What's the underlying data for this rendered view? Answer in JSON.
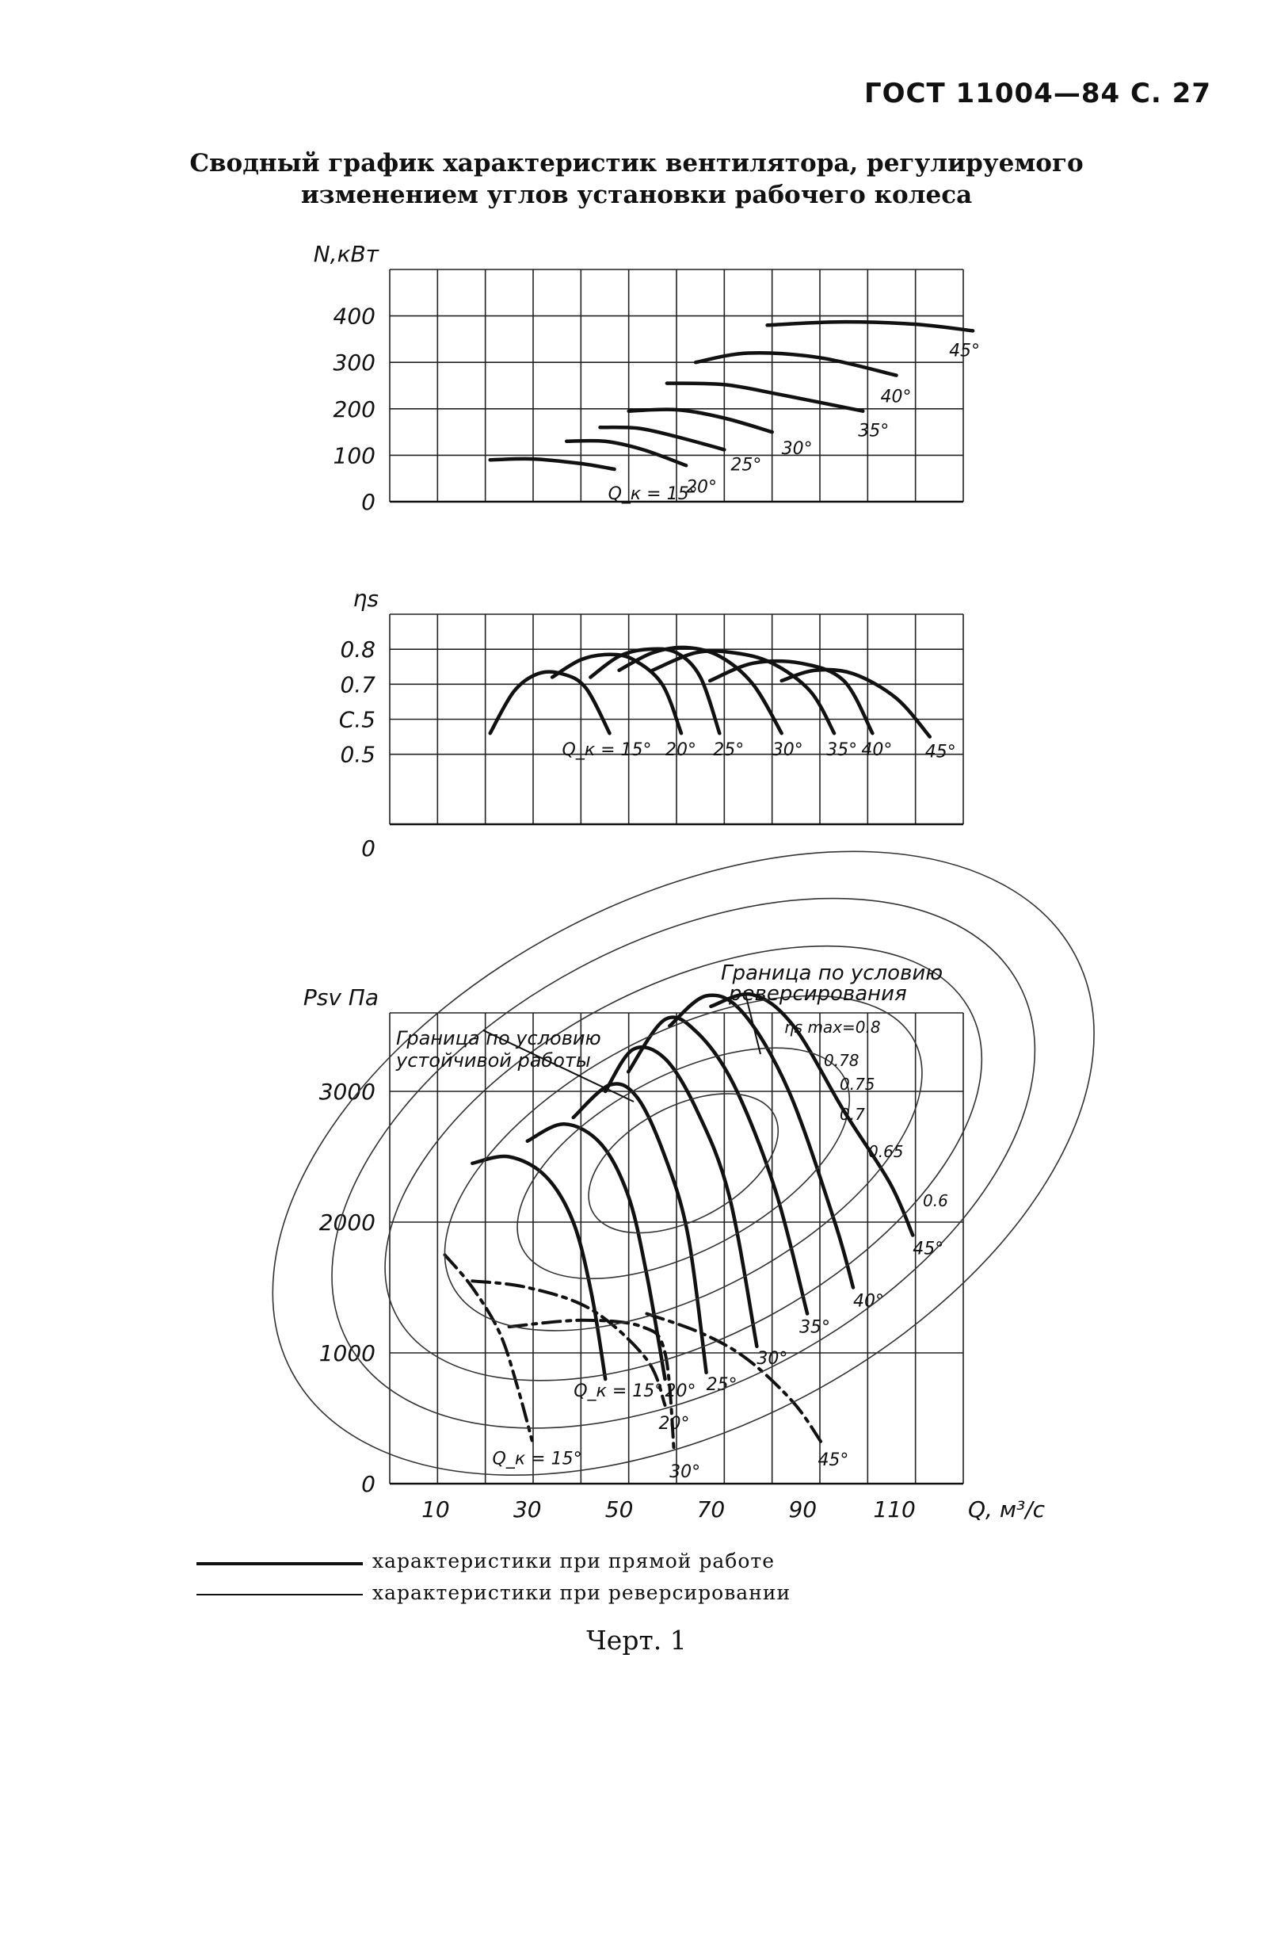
{
  "header": {
    "doc_ref": "ГОСТ 11004—84 С. 27"
  },
  "title": {
    "line1": "Сводный график характеристик вентилятора, регулируемого",
    "line2": "изменением углов установки рабочего колеса"
  },
  "chart_data": [
    {
      "type": "line",
      "id": "power",
      "ylabel": "N,кВт",
      "x_unit": "Q, м³/с",
      "xlim": [
        0,
        120
      ],
      "ylim": [
        0,
        500
      ],
      "yticks": [
        0,
        100,
        200,
        300,
        400
      ],
      "ytick_labels": [
        "0",
        "100",
        "200",
        "300",
        "400"
      ],
      "grid": true,
      "series": [
        {
          "name": "Q_к = 15°",
          "label": "Q_к = 15°",
          "points": [
            [
              21,
              90
            ],
            [
              30,
              92
            ],
            [
              40,
              82
            ],
            [
              47,
              70
            ]
          ]
        },
        {
          "name": "20°",
          "label": "20°",
          "points": [
            [
              37,
              130
            ],
            [
              45,
              130
            ],
            [
              53,
              112
            ],
            [
              62,
              78
            ]
          ]
        },
        {
          "name": "25°",
          "label": "25°",
          "points": [
            [
              44,
              160
            ],
            [
              52,
              158
            ],
            [
              60,
              140
            ],
            [
              70,
              112
            ]
          ]
        },
        {
          "name": "30°",
          "label": "30°",
          "points": [
            [
              50,
              195
            ],
            [
              60,
              198
            ],
            [
              70,
              180
            ],
            [
              80,
              150
            ]
          ]
        },
        {
          "name": "35°",
          "label": "35°",
          "points": [
            [
              58,
              255
            ],
            [
              70,
              252
            ],
            [
              82,
              230
            ],
            [
              99,
              195
            ]
          ]
        },
        {
          "name": "40°",
          "label": "40°",
          "points": [
            [
              64,
              300
            ],
            [
              75,
              320
            ],
            [
              90,
              310
            ],
            [
              106,
              272
            ]
          ]
        },
        {
          "name": "45°",
          "label": "45°",
          "points": [
            [
              79,
              380
            ],
            [
              94,
              387
            ],
            [
              110,
              382
            ],
            [
              122,
              368
            ]
          ]
        }
      ]
    },
    {
      "type": "line",
      "id": "efficiency",
      "ylabel": "ηs",
      "x_unit": "Q, м³/с",
      "xlim": [
        0,
        120
      ],
      "ylim": [
        0.3,
        0.9
      ],
      "yticks": [
        0.5,
        0.6,
        0.7,
        0.8
      ],
      "ytick_labels": [
        "0.5",
        "C.5",
        "0.7",
        "0.8"
      ],
      "zero_label": "0",
      "grid": true,
      "series": [
        {
          "name": "Q_к = 15°",
          "label": "Q_к = 15°",
          "points": [
            [
              21,
              0.56
            ],
            [
              26,
              0.68
            ],
            [
              31,
              0.73
            ],
            [
              36,
              0.73
            ],
            [
              41,
              0.69
            ],
            [
              46,
              0.56
            ]
          ]
        },
        {
          "name": "20°",
          "label": "20°",
          "points": [
            [
              34,
              0.72
            ],
            [
              40,
              0.77
            ],
            [
              46,
              0.785
            ],
            [
              51,
              0.77
            ],
            [
              57,
              0.7
            ],
            [
              61,
              0.56
            ]
          ]
        },
        {
          "name": "25°",
          "label": "25°",
          "points": [
            [
              42,
              0.72
            ],
            [
              48,
              0.78
            ],
            [
              54,
              0.8
            ],
            [
              60,
              0.79
            ],
            [
              65,
              0.72
            ],
            [
              69,
              0.56
            ]
          ]
        },
        {
          "name": "30°",
          "label": "30°",
          "points": [
            [
              48,
              0.74
            ],
            [
              55,
              0.79
            ],
            [
              62,
              0.805
            ],
            [
              69,
              0.78
            ],
            [
              76,
              0.7
            ],
            [
              82,
              0.56
            ]
          ]
        },
        {
          "name": "35°",
          "label": "35°",
          "points": [
            [
              55,
              0.74
            ],
            [
              64,
              0.79
            ],
            [
              72,
              0.79
            ],
            [
              80,
              0.76
            ],
            [
              88,
              0.68
            ],
            [
              93,
              0.56
            ]
          ]
        },
        {
          "name": "40°",
          "label": "40°",
          "points": [
            [
              67,
              0.71
            ],
            [
              76,
              0.76
            ],
            [
              86,
              0.76
            ],
            [
              95,
              0.71
            ],
            [
              101,
              0.56
            ]
          ]
        },
        {
          "name": "45°",
          "label": "45°",
          "points": [
            [
              82,
              0.71
            ],
            [
              89,
              0.74
            ],
            [
              97,
              0.73
            ],
            [
              106,
              0.66
            ],
            [
              113,
              0.55
            ]
          ]
        }
      ]
    },
    {
      "type": "line",
      "id": "pressure",
      "ylabel": "Psv Па",
      "xlabel": "Q, м³/с",
      "xlim": [
        0,
        125
      ],
      "ylim": [
        0,
        3600
      ],
      "xticks": [
        10,
        30,
        50,
        70,
        90,
        110
      ],
      "xtick_labels": [
        "10",
        "30",
        "50",
        "70",
        "90",
        "110"
      ],
      "yticks": [
        0,
        1000,
        2000,
        3000
      ],
      "ytick_labels": [
        "0",
        "1000",
        "2000",
        "3000"
      ],
      "grid": true,
      "annotations": [
        "Граница по условию реверсирования",
        "Граница по условию устойчивой работы"
      ],
      "efficiency_contours": [
        "ηs max=0.8",
        "0.78",
        "0.75",
        "0.7",
        "0.65",
        "0.6"
      ],
      "series": [
        {
          "name": "Q_к = 15°",
          "label": "Q_к = 15°",
          "style": "solid",
          "points": [
            [
              18,
              2450
            ],
            [
              26,
              2500
            ],
            [
              34,
              2350
            ],
            [
              40,
              2000
            ],
            [
              44,
              1450
            ],
            [
              47,
              800
            ]
          ]
        },
        {
          "name": "20°",
          "label": "20°",
          "style": "solid",
          "points": [
            [
              30,
              2620
            ],
            [
              38,
              2750
            ],
            [
              46,
              2600
            ],
            [
              52,
              2200
            ],
            [
              56,
              1600
            ],
            [
              60,
              800
            ]
          ]
        },
        {
          "name": "25°",
          "label": "25°",
          "style": "solid",
          "points": [
            [
              40,
              2800
            ],
            [
              48,
              3050
            ],
            [
              54,
              2950
            ],
            [
              60,
              2500
            ],
            [
              65,
              1900
            ],
            [
              69,
              850
            ]
          ]
        },
        {
          "name": "30°",
          "label": "30°",
          "style": "solid",
          "points": [
            [
              47,
              3000
            ],
            [
              53,
              3320
            ],
            [
              60,
              3250
            ],
            [
              67,
              2850
            ],
            [
              74,
              2200
            ],
            [
              80,
              1050
            ]
          ]
        },
        {
          "name": "35°",
          "label": "35°",
          "style": "solid",
          "points": [
            [
              52,
              3150
            ],
            [
              60,
              3550
            ],
            [
              67,
              3450
            ],
            [
              75,
              3050
            ],
            [
              84,
              2250
            ],
            [
              91,
              1300
            ]
          ]
        },
        {
          "name": "40°",
          "label": "40°",
          "style": "solid",
          "points": [
            [
              61,
              3500
            ],
            [
              69,
              3730
            ],
            [
              77,
              3600
            ],
            [
              87,
              3000
            ],
            [
              97,
              2000
            ],
            [
              101,
              1500
            ]
          ]
        },
        {
          "name": "45°",
          "label": "45°",
          "style": "solid",
          "points": [
            [
              70,
              3650
            ],
            [
              79,
              3740
            ],
            [
              88,
              3500
            ],
            [
              99,
              2850
            ],
            [
              109,
              2300
            ],
            [
              114,
              1900
            ]
          ]
        },
        {
          "name": "rev Q_к = 15°",
          "label": "Q_к = 15°",
          "style": "dash",
          "points": [
            [
              12,
              1750
            ],
            [
              18,
              1500
            ],
            [
              24,
              1150
            ],
            [
              28,
              720
            ],
            [
              31,
              330
            ]
          ]
        },
        {
          "name": "rev 20°",
          "label": "20°",
          "style": "dash",
          "points": [
            [
              18,
              1550
            ],
            [
              30,
              1500
            ],
            [
              44,
              1330
            ],
            [
              56,
              950
            ],
            [
              60,
              600
            ]
          ]
        },
        {
          "name": "rev 30°",
          "label": "30°",
          "style": "dash",
          "points": [
            [
              26,
              1200
            ],
            [
              42,
              1250
            ],
            [
              55,
              1200
            ],
            [
              60,
              1000
            ],
            [
              62,
              230
            ]
          ]
        },
        {
          "name": "rev 45°",
          "label": "45°",
          "style": "dash",
          "points": [
            [
              56,
              1300
            ],
            [
              68,
              1150
            ],
            [
              78,
              950
            ],
            [
              88,
              620
            ],
            [
              94,
              320
            ]
          ]
        }
      ]
    }
  ],
  "legend": {
    "solid": "характеристики при прямой работе",
    "dashed": "характеристики при реверсировании"
  },
  "caption": "Черт. 1"
}
